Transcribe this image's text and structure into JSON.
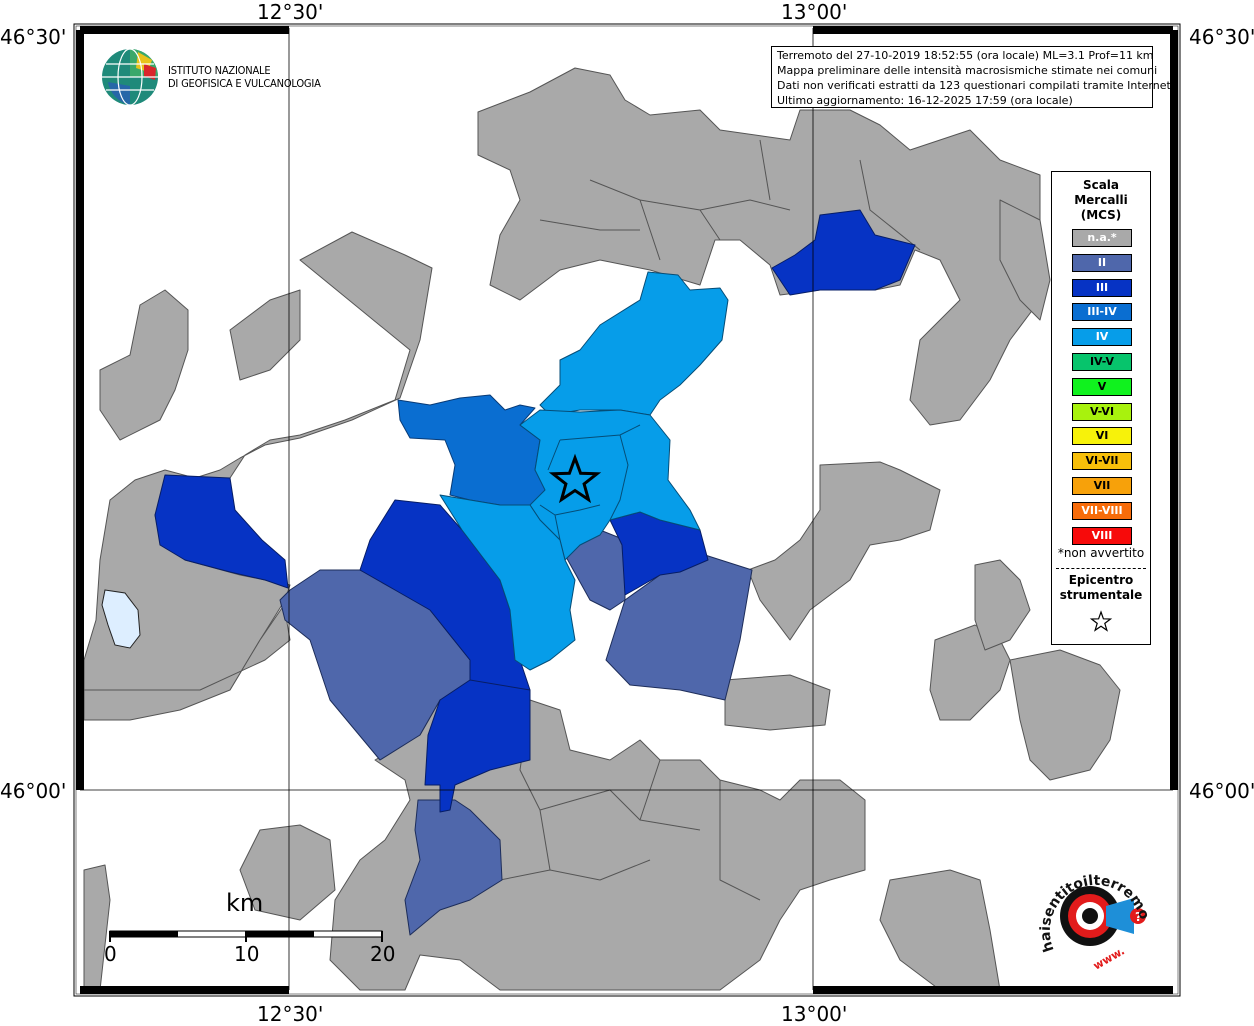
{
  "coordinates": {
    "lon_top": [
      "12°30'",
      "13°00'"
    ],
    "lon_bottom": [
      "12°30'",
      "13°00'"
    ],
    "lat_left": [
      "46°30'",
      "46°00'"
    ],
    "lat_right": [
      "46°30'",
      "46°00'"
    ]
  },
  "info": {
    "line1": "Terremoto del 27-10-2019 18:52:55 (ora locale) ML=3.1 Prof=11 km",
    "line2": "Mappa preliminare delle intensità macrosismiche stimate nei comuni",
    "line3": "Dati non verificati estratti da 123 questionari compilati tramite Internet.",
    "line4": "Ultimo aggiornamento: 16-12-2025 17:59 (ora locale)"
  },
  "logo_ingv": {
    "line1": "ISTITUTO NAZIONALE",
    "line2": "DI GEOFISICA E VULCANOLOGIA"
  },
  "legend": {
    "title_line1": "Scala",
    "title_line2": "Mercalli",
    "title_line3": "(MCS)",
    "items": [
      {
        "label": "n.a.*",
        "color": "#a9a9a9"
      },
      {
        "label": "II",
        "color": "#4f67ab"
      },
      {
        "label": "III",
        "color": "#0633c4"
      },
      {
        "label": "III-IV",
        "color": "#0a6ed1"
      },
      {
        "label": "IV",
        "color": "#069de9"
      },
      {
        "label": "IV-V",
        "color": "#07c46c"
      },
      {
        "label": "V",
        "color": "#10f21e"
      },
      {
        "label": "V-VI",
        "color": "#a8f20d"
      },
      {
        "label": "VI",
        "color": "#f7f20a"
      },
      {
        "label": "VI-VII",
        "color": "#f7bf0a"
      },
      {
        "label": "VII",
        "color": "#f7a10a"
      },
      {
        "label": "VII-VIII",
        "color": "#f76c0a"
      },
      {
        "label": "VIII",
        "color": "#f70a0a"
      }
    ],
    "note": "*non avvertito",
    "epicenter_line1": "Epicentro",
    "epicenter_line2": "strumentale"
  },
  "scalebar": {
    "unit": "km",
    "ticks": [
      "0",
      "10",
      "20"
    ]
  },
  "logo_hst": {
    "text": "haisentitoilterremoto.it",
    "url": "www."
  },
  "colors": {
    "na": "#a9a9a9",
    "II": "#4f67ab",
    "III": "#0633c4",
    "III-IV": "#0a6ed1",
    "IV": "#069de9",
    "lake": "#ddeeff"
  }
}
